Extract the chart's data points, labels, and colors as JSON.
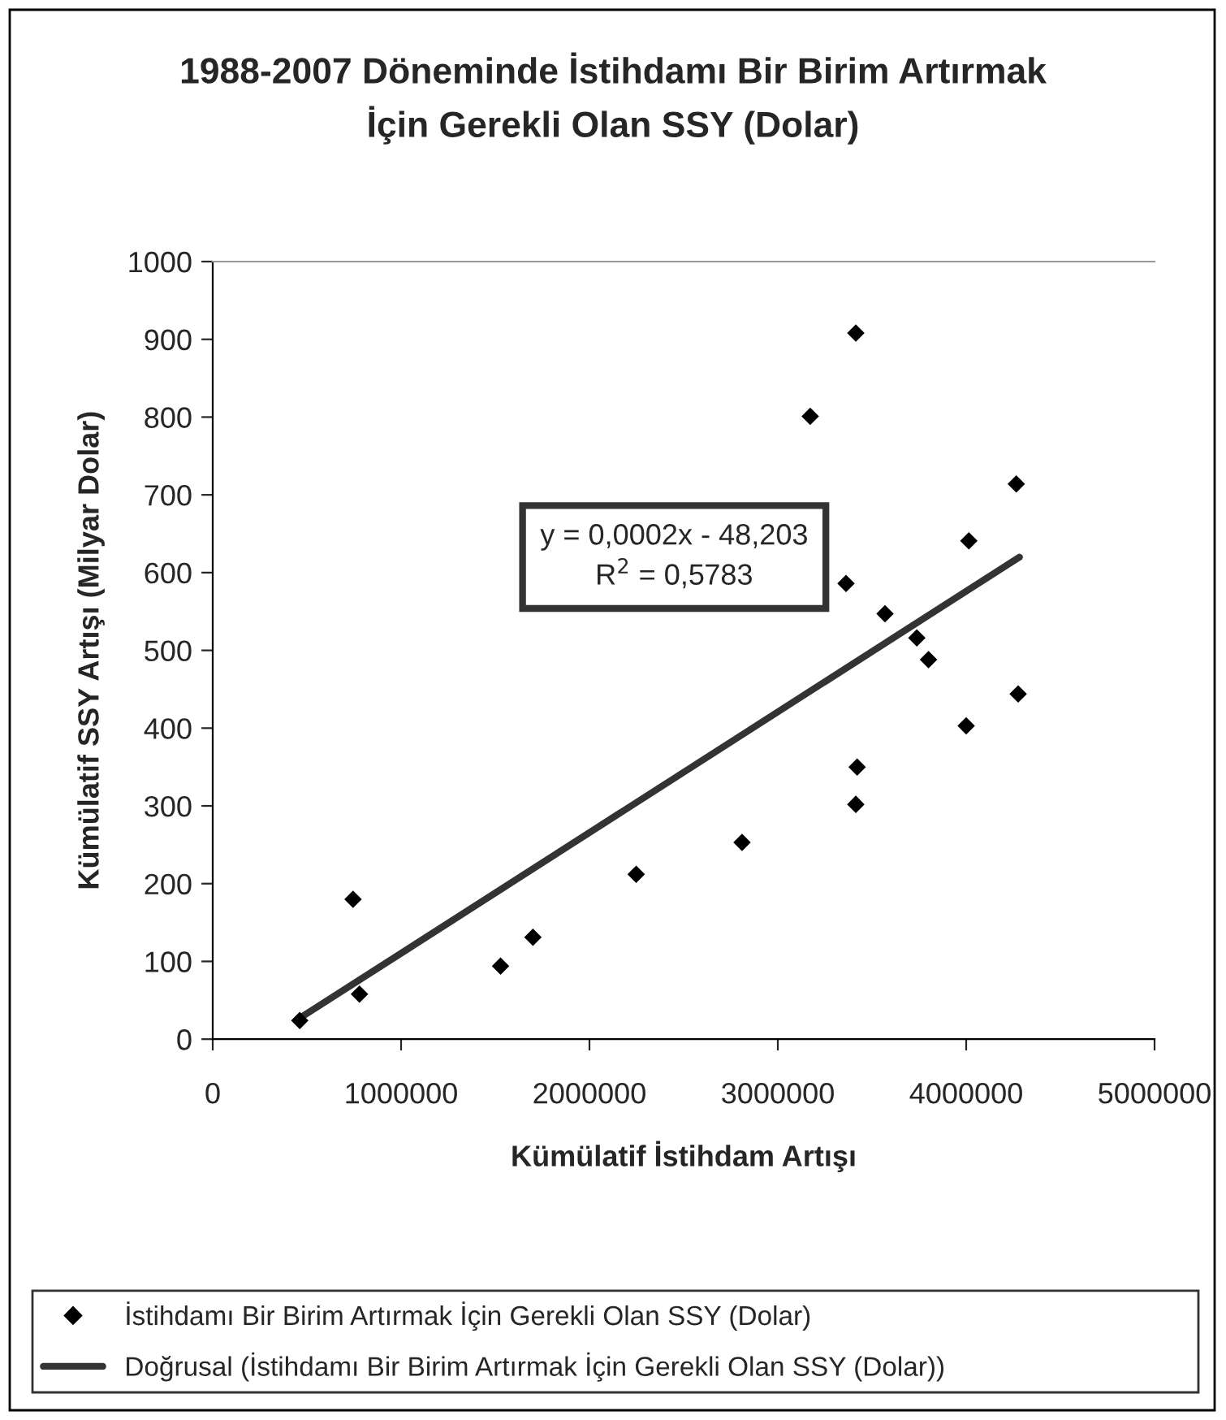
{
  "chart_data": {
    "type": "scatter",
    "title": "1988-2007 Döneminde İstihdamı Bir Birim Artırmak\nİçin Gerekli Olan SSY (Dolar)",
    "xlabel": "Kümülatif İstihdam Artışı",
    "ylabel": "Kümülatif SSY Artışı (Milyar Dolar)",
    "x": [
      462000,
      745000,
      779000,
      1528000,
      1700000,
      2248000,
      2810000,
      3172000,
      3414000,
      3362000,
      3421000,
      3414000,
      3569000,
      3738000,
      3800000,
      4014000,
      4000000,
      4266000,
      4276000
    ],
    "series": [
      {
        "name": "İstihdamı Bir Birim Artırmak İçin Gerekli Olan SSY (Dolar)",
        "color": "#000000",
        "marker": "diamond",
        "values": [
          24,
          180,
          58,
          94,
          131,
          212,
          253,
          801,
          908,
          586,
          350,
          302,
          547,
          516,
          488,
          641,
          403,
          714,
          444
        ]
      },
      {
        "name": "Doğrusal (İstihdamı Bir Birim Artırmak İçin Gerekli Olan SSY (Dolar))",
        "type": "line",
        "color": "#333333",
        "line_style": "solid",
        "marker": "none",
        "x": [
          462000,
          4283000
        ],
        "values": [
          27,
          620
        ]
      }
    ],
    "annotations": [
      "y = 0,0002x - 48,203\nR$^{2}$ = 0,5783"
    ],
    "xlim": [
      0,
      5000000
    ],
    "xticks": [
      0,
      1000000,
      2000000,
      3000000,
      4000000,
      5000000
    ],
    "ylim": [
      0,
      1000
    ],
    "yticks": [
      0,
      100,
      200,
      300,
      400,
      500,
      600,
      700,
      800,
      900,
      1000
    ],
    "grid": false,
    "legend": "bottom"
  }
}
